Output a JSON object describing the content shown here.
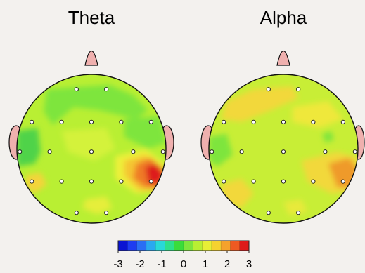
{
  "maps": [
    {
      "title": "Theta",
      "colors": {
        "base": "#b9ef33",
        "head_outline": "#111111",
        "ear": "#efb0ae"
      },
      "blobs": [
        {
          "color": "#7ee53c",
          "pts": [
            [
              0.2,
              0.1
            ],
            [
              0.62,
              0.07
            ],
            [
              0.78,
              0.14
            ],
            [
              0.88,
              0.24
            ],
            [
              0.8,
              0.3
            ],
            [
              0.55,
              0.24
            ],
            [
              0.38,
              0.22
            ],
            [
              0.24,
              0.34
            ],
            [
              0.18,
              0.25
            ]
          ]
        },
        {
          "color": "#4fd34a",
          "pts": [
            [
              0.0,
              0.38
            ],
            [
              0.14,
              0.36
            ],
            [
              0.16,
              0.52
            ],
            [
              0.12,
              0.6
            ],
            [
              0.0,
              0.62
            ]
          ]
        },
        {
          "color": "#7ee53c",
          "pts": [
            [
              0.72,
              0.3
            ],
            [
              0.96,
              0.28
            ],
            [
              1.0,
              0.46
            ],
            [
              0.88,
              0.5
            ],
            [
              0.72,
              0.42
            ]
          ]
        },
        {
          "color": "#d4f23a",
          "pts": [
            [
              0.3,
              0.38
            ],
            [
              0.6,
              0.36
            ],
            [
              0.66,
              0.5
            ],
            [
              0.52,
              0.58
            ],
            [
              0.34,
              0.52
            ]
          ]
        },
        {
          "color": "#eef03a",
          "pts": [
            [
              0.66,
              0.55
            ],
            [
              0.86,
              0.5
            ],
            [
              1.0,
              0.6
            ],
            [
              1.0,
              0.78
            ],
            [
              0.8,
              0.8
            ],
            [
              0.66,
              0.7
            ]
          ]
        },
        {
          "color": "#f5c430",
          "pts": [
            [
              0.72,
              0.58
            ],
            [
              0.86,
              0.54
            ],
            [
              1.0,
              0.64
            ],
            [
              0.98,
              0.78
            ],
            [
              0.82,
              0.78
            ],
            [
              0.72,
              0.68
            ]
          ]
        },
        {
          "color": "#ef7a28",
          "pts": [
            [
              0.8,
              0.6
            ],
            [
              0.9,
              0.56
            ],
            [
              1.0,
              0.66
            ],
            [
              0.98,
              0.76
            ],
            [
              0.86,
              0.76
            ],
            [
              0.78,
              0.7
            ]
          ]
        },
        {
          "color": "#dd1a1a",
          "pts": [
            [
              0.86,
              0.62
            ],
            [
              0.94,
              0.6
            ],
            [
              0.99,
              0.68
            ],
            [
              0.95,
              0.74
            ],
            [
              0.88,
              0.73
            ]
          ]
        },
        {
          "color": "#f4d43a",
          "pts": [
            [
              0.06,
              0.68
            ],
            [
              0.16,
              0.66
            ],
            [
              0.2,
              0.74
            ],
            [
              0.12,
              0.8
            ],
            [
              0.06,
              0.76
            ]
          ]
        },
        {
          "color": "#e6ee3a",
          "pts": [
            [
              0.46,
              0.84
            ],
            [
              0.6,
              0.82
            ],
            [
              0.64,
              0.9
            ],
            [
              0.54,
              0.94
            ],
            [
              0.44,
              0.9
            ]
          ]
        }
      ]
    },
    {
      "title": "Alpha",
      "colors": {
        "base": "#c8ee36",
        "head_outline": "#111111",
        "ear": "#efb0ae"
      },
      "blobs": [
        {
          "color": "#f2d83a",
          "pts": [
            [
              0.12,
              0.18
            ],
            [
              0.3,
              0.1
            ],
            [
              0.56,
              0.08
            ],
            [
              0.6,
              0.16
            ],
            [
              0.42,
              0.24
            ],
            [
              0.22,
              0.32
            ],
            [
              0.08,
              0.3
            ]
          ]
        },
        {
          "color": "#efe83a",
          "pts": [
            [
              0.56,
              0.22
            ],
            [
              0.8,
              0.18
            ],
            [
              0.9,
              0.3
            ],
            [
              0.74,
              0.36
            ],
            [
              0.56,
              0.32
            ]
          ]
        },
        {
          "color": "#7ee53c",
          "pts": [
            [
              0.0,
              0.42
            ],
            [
              0.12,
              0.4
            ],
            [
              0.16,
              0.54
            ],
            [
              0.06,
              0.62
            ],
            [
              0.0,
              0.58
            ]
          ]
        },
        {
          "color": "#7ee53c",
          "pts": [
            [
              0.76,
              0.4
            ],
            [
              0.82,
              0.38
            ],
            [
              0.84,
              0.44
            ],
            [
              0.78,
              0.46
            ]
          ]
        },
        {
          "color": "#f2d83a",
          "pts": [
            [
              0.62,
              0.58
            ],
            [
              0.86,
              0.52
            ],
            [
              1.0,
              0.56
            ],
            [
              1.0,
              0.78
            ],
            [
              0.82,
              0.8
            ],
            [
              0.66,
              0.72
            ]
          ]
        },
        {
          "color": "#ef9a2a",
          "pts": [
            [
              0.8,
              0.6
            ],
            [
              0.94,
              0.56
            ],
            [
              1.0,
              0.64
            ],
            [
              0.98,
              0.76
            ],
            [
              0.86,
              0.76
            ]
          ]
        },
        {
          "color": "#f2d83a",
          "pts": [
            [
              0.08,
              0.74
            ],
            [
              0.22,
              0.7
            ],
            [
              0.3,
              0.8
            ],
            [
              0.22,
              0.9
            ],
            [
              0.1,
              0.86
            ]
          ]
        },
        {
          "color": "#e8ea3a",
          "pts": [
            [
              0.5,
              0.86
            ],
            [
              0.62,
              0.84
            ],
            [
              0.66,
              0.92
            ],
            [
              0.54,
              0.95
            ]
          ]
        }
      ]
    }
  ],
  "electrodes": [
    [
      0.4,
      0.1
    ],
    [
      0.6,
      0.1
    ],
    [
      0.1,
      0.32
    ],
    [
      0.3,
      0.32
    ],
    [
      0.5,
      0.32
    ],
    [
      0.7,
      0.32
    ],
    [
      0.9,
      0.32
    ],
    [
      0.02,
      0.52
    ],
    [
      0.22,
      0.52
    ],
    [
      0.5,
      0.52
    ],
    [
      0.78,
      0.52
    ],
    [
      0.98,
      0.52
    ],
    [
      0.1,
      0.72
    ],
    [
      0.3,
      0.72
    ],
    [
      0.5,
      0.72
    ],
    [
      0.7,
      0.72
    ],
    [
      0.9,
      0.72
    ],
    [
      0.4,
      0.93
    ],
    [
      0.6,
      0.93
    ]
  ],
  "colorbar": {
    "min": -3,
    "max": 3,
    "ticks": [
      "-3",
      "-2",
      "-1",
      "0",
      "1",
      "2",
      "3"
    ],
    "colors": [
      "#0a14d2",
      "#1e3cf0",
      "#2a6ef4",
      "#2aa8f0",
      "#29d8d8",
      "#2de08a",
      "#3adc3a",
      "#7ee53c",
      "#b9ef33",
      "#e8ef36",
      "#f5d230",
      "#f5a22c",
      "#ee5a22",
      "#dd1a1a"
    ]
  }
}
